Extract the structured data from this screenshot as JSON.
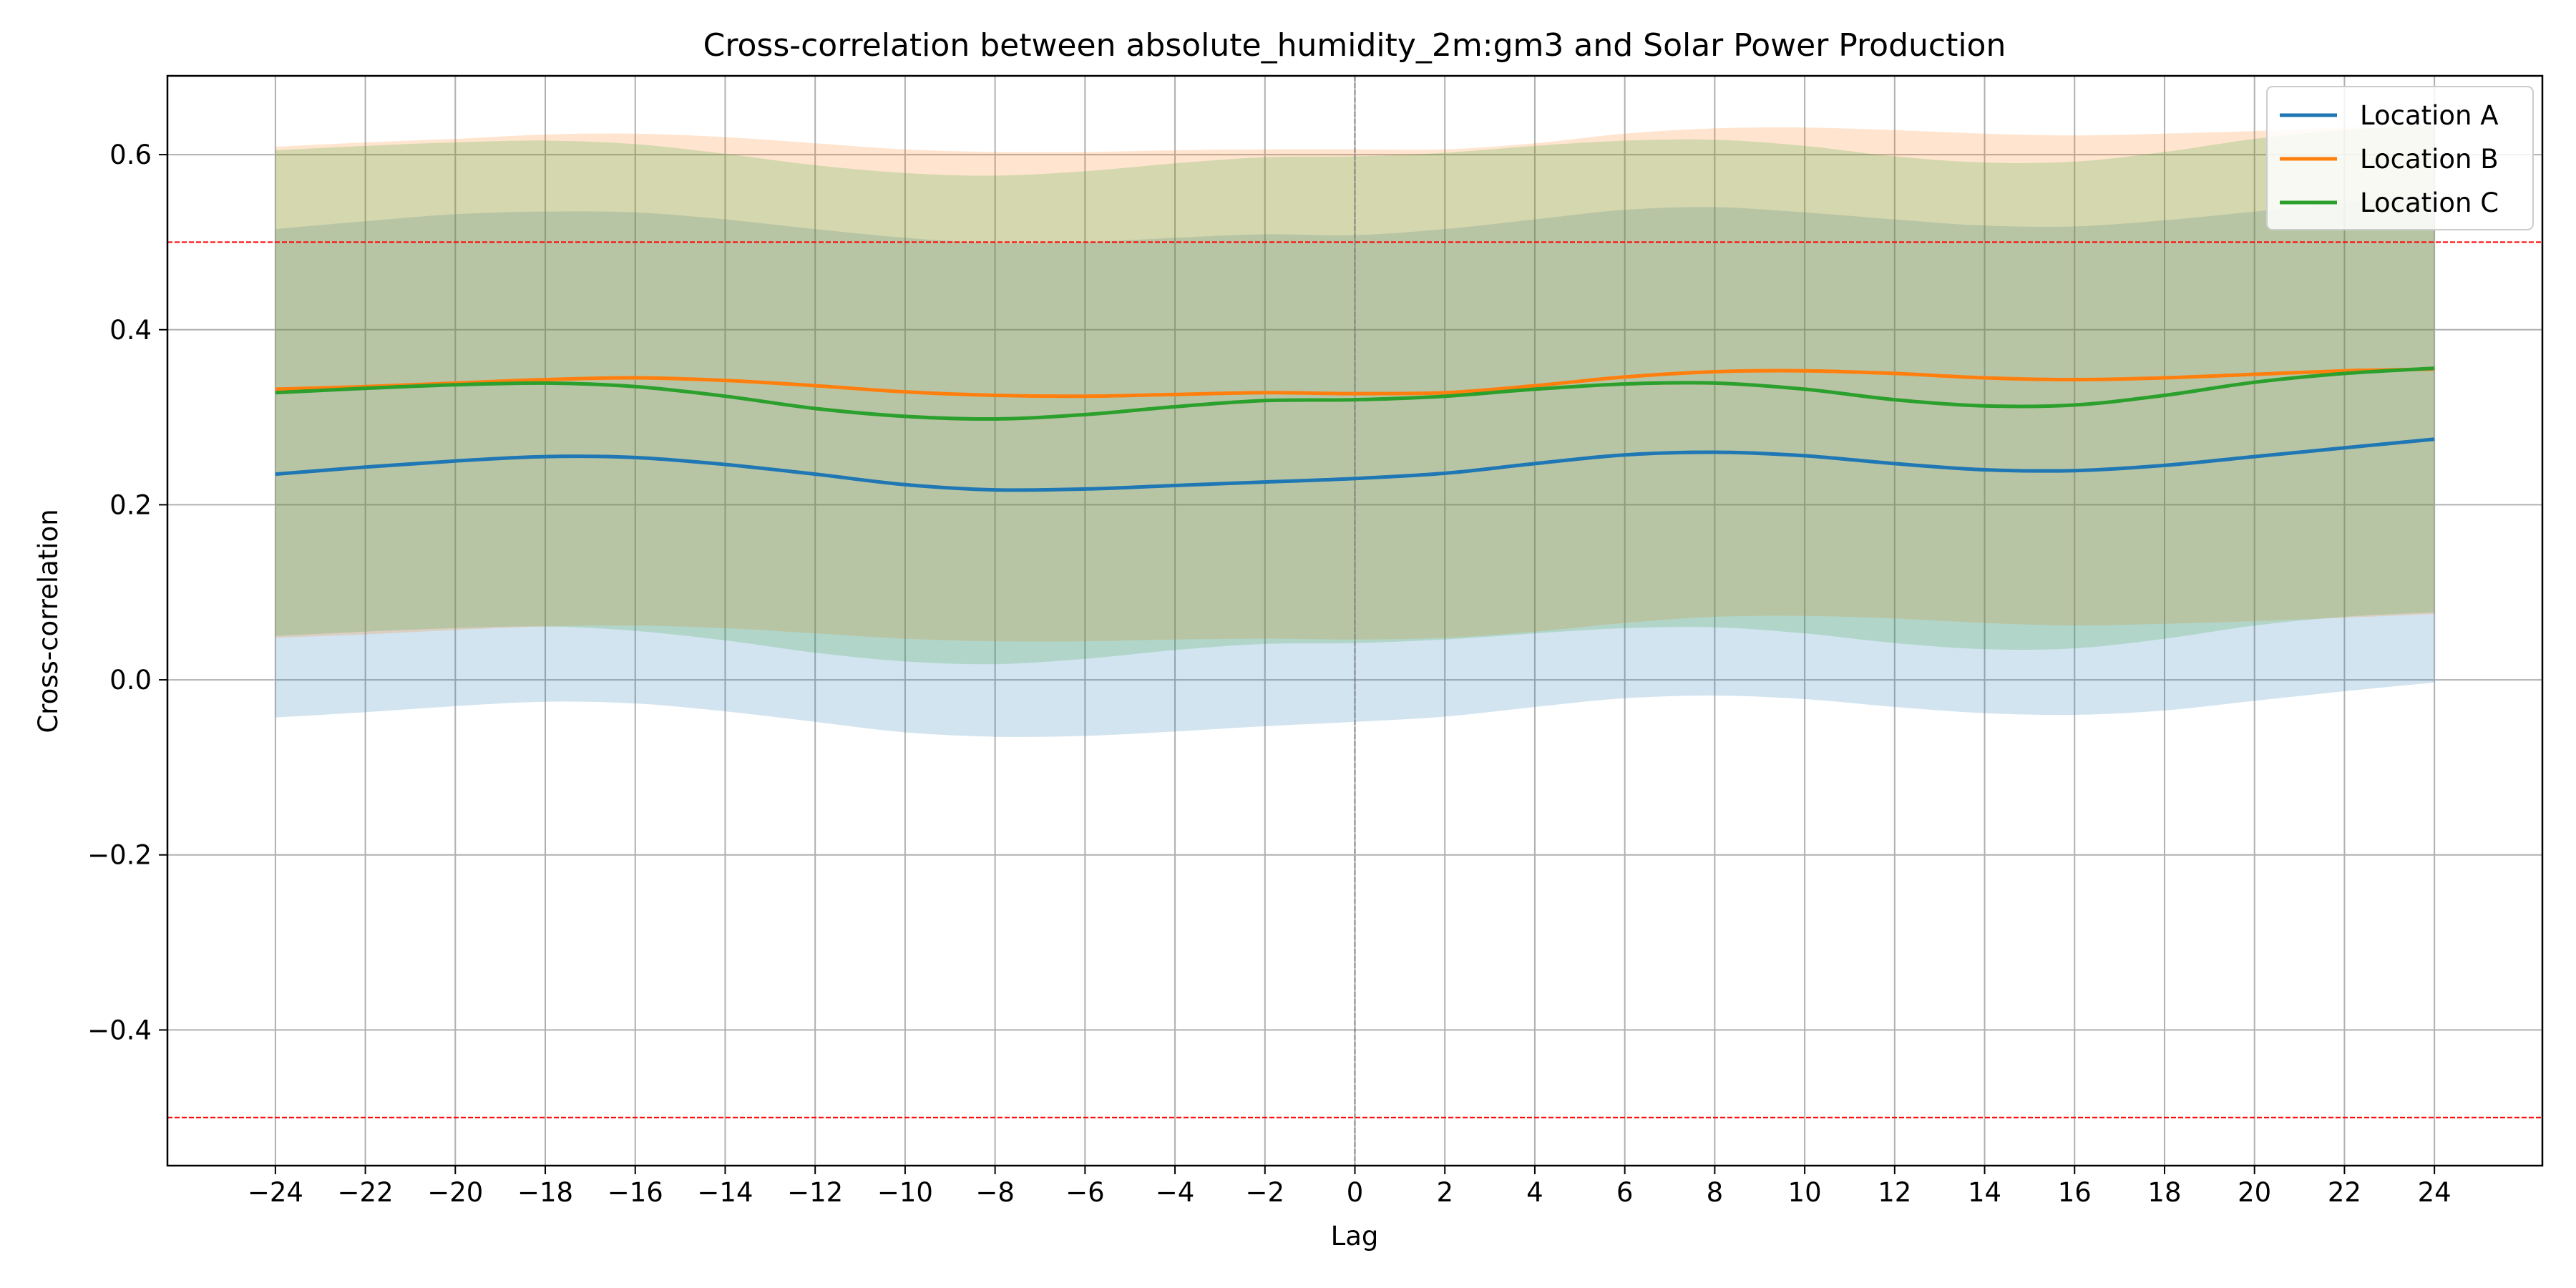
{
  "chart_data": {
    "type": "line",
    "title": "Cross-correlation between absolute_humidity_2m:gm3 and Solar Power Production",
    "xlabel": "Lag",
    "ylabel": "Cross-correlation",
    "xlim": [
      -26.4,
      26.4
    ],
    "ylim": [
      -0.555,
      0.69
    ],
    "xticks": [
      -24,
      -22,
      -20,
      -18,
      -16,
      -14,
      -12,
      -10,
      -8,
      -6,
      -4,
      -2,
      0,
      2,
      4,
      6,
      8,
      10,
      12,
      14,
      16,
      18,
      20,
      22,
      24
    ],
    "xtick_labels": [
      "−24",
      "−22",
      "−20",
      "−18",
      "−16",
      "−14",
      "−12",
      "−10",
      "−8",
      "−6",
      "−4",
      "−2",
      "0",
      "2",
      "4",
      "6",
      "8",
      "10",
      "12",
      "14",
      "16",
      "18",
      "20",
      "22",
      "24"
    ],
    "yticks": [
      -0.4,
      -0.2,
      0.0,
      0.2,
      0.4,
      0.6
    ],
    "ytick_labels": [
      "−0.4",
      "−0.2",
      "0.0",
      "0.2",
      "0.4",
      "0.6"
    ],
    "grid": true,
    "legend_position": "top-right",
    "reference_lines": [
      {
        "orientation": "horizontal",
        "value": 0.5,
        "color": "#ff0000",
        "style": "dashed"
      },
      {
        "orientation": "horizontal",
        "value": -0.5,
        "color": "#ff0000",
        "style": "dashed"
      },
      {
        "orientation": "vertical",
        "value": 0,
        "color": "#808080",
        "style": "dashed"
      }
    ],
    "x": [
      -24,
      -22,
      -20,
      -18,
      -16,
      -14,
      -12,
      -10,
      -8,
      -6,
      -4,
      -2,
      0,
      2,
      4,
      6,
      8,
      10,
      12,
      14,
      16,
      18,
      20,
      22,
      24
    ],
    "series": [
      {
        "name": "Location A",
        "color": "#1f77b4",
        "values": [
          0.235,
          0.243,
          0.25,
          0.255,
          0.254,
          0.246,
          0.235,
          0.223,
          0.217,
          0.218,
          0.222,
          0.226,
          0.23,
          0.236,
          0.247,
          0.257,
          0.26,
          0.256,
          0.247,
          0.24,
          0.239,
          0.245,
          0.255,
          0.265,
          0.275
        ],
        "lower": [
          -0.043,
          -0.037,
          -0.03,
          -0.025,
          -0.027,
          -0.036,
          -0.048,
          -0.06,
          -0.065,
          -0.064,
          -0.059,
          -0.053,
          -0.048,
          -0.042,
          -0.031,
          -0.021,
          -0.018,
          -0.022,
          -0.031,
          -0.038,
          -0.04,
          -0.035,
          -0.024,
          -0.013,
          -0.003
        ],
        "upper": [
          0.515,
          0.524,
          0.532,
          0.535,
          0.534,
          0.526,
          0.515,
          0.505,
          0.499,
          0.5,
          0.505,
          0.509,
          0.508,
          0.515,
          0.526,
          0.537,
          0.54,
          0.534,
          0.526,
          0.519,
          0.518,
          0.525,
          0.535,
          0.545,
          0.554
        ]
      },
      {
        "name": "Location B",
        "color": "#ff7f0e",
        "values": [
          0.332,
          0.335,
          0.339,
          0.343,
          0.345,
          0.342,
          0.336,
          0.329,
          0.325,
          0.324,
          0.326,
          0.328,
          0.327,
          0.328,
          0.336,
          0.346,
          0.352,
          0.353,
          0.35,
          0.345,
          0.343,
          0.345,
          0.349,
          0.353,
          0.355
        ],
        "lower": [
          0.048,
          0.052,
          0.057,
          0.061,
          0.062,
          0.059,
          0.053,
          0.047,
          0.044,
          0.044,
          0.046,
          0.047,
          0.046,
          0.048,
          0.055,
          0.065,
          0.072,
          0.073,
          0.07,
          0.065,
          0.062,
          0.064,
          0.067,
          0.071,
          0.075
        ],
        "upper": [
          0.609,
          0.614,
          0.618,
          0.623,
          0.624,
          0.62,
          0.613,
          0.606,
          0.603,
          0.603,
          0.605,
          0.606,
          0.606,
          0.606,
          0.613,
          0.624,
          0.63,
          0.631,
          0.628,
          0.624,
          0.622,
          0.624,
          0.627,
          0.631,
          0.633
        ]
      },
      {
        "name": "Location C",
        "color": "#2ca02c",
        "values": [
          0.328,
          0.333,
          0.337,
          0.339,
          0.335,
          0.324,
          0.31,
          0.301,
          0.298,
          0.303,
          0.312,
          0.319,
          0.32,
          0.324,
          0.332,
          0.338,
          0.339,
          0.332,
          0.32,
          0.313,
          0.314,
          0.325,
          0.34,
          0.35,
          0.356
        ],
        "lower": [
          0.05,
          0.055,
          0.059,
          0.061,
          0.056,
          0.045,
          0.031,
          0.021,
          0.018,
          0.024,
          0.034,
          0.041,
          0.042,
          0.046,
          0.053,
          0.059,
          0.06,
          0.053,
          0.042,
          0.035,
          0.036,
          0.047,
          0.062,
          0.072,
          0.077
        ],
        "upper": [
          0.605,
          0.61,
          0.614,
          0.616,
          0.612,
          0.601,
          0.588,
          0.579,
          0.576,
          0.581,
          0.59,
          0.597,
          0.598,
          0.602,
          0.61,
          0.616,
          0.617,
          0.61,
          0.598,
          0.591,
          0.592,
          0.603,
          0.618,
          0.628,
          0.634
        ]
      }
    ]
  }
}
